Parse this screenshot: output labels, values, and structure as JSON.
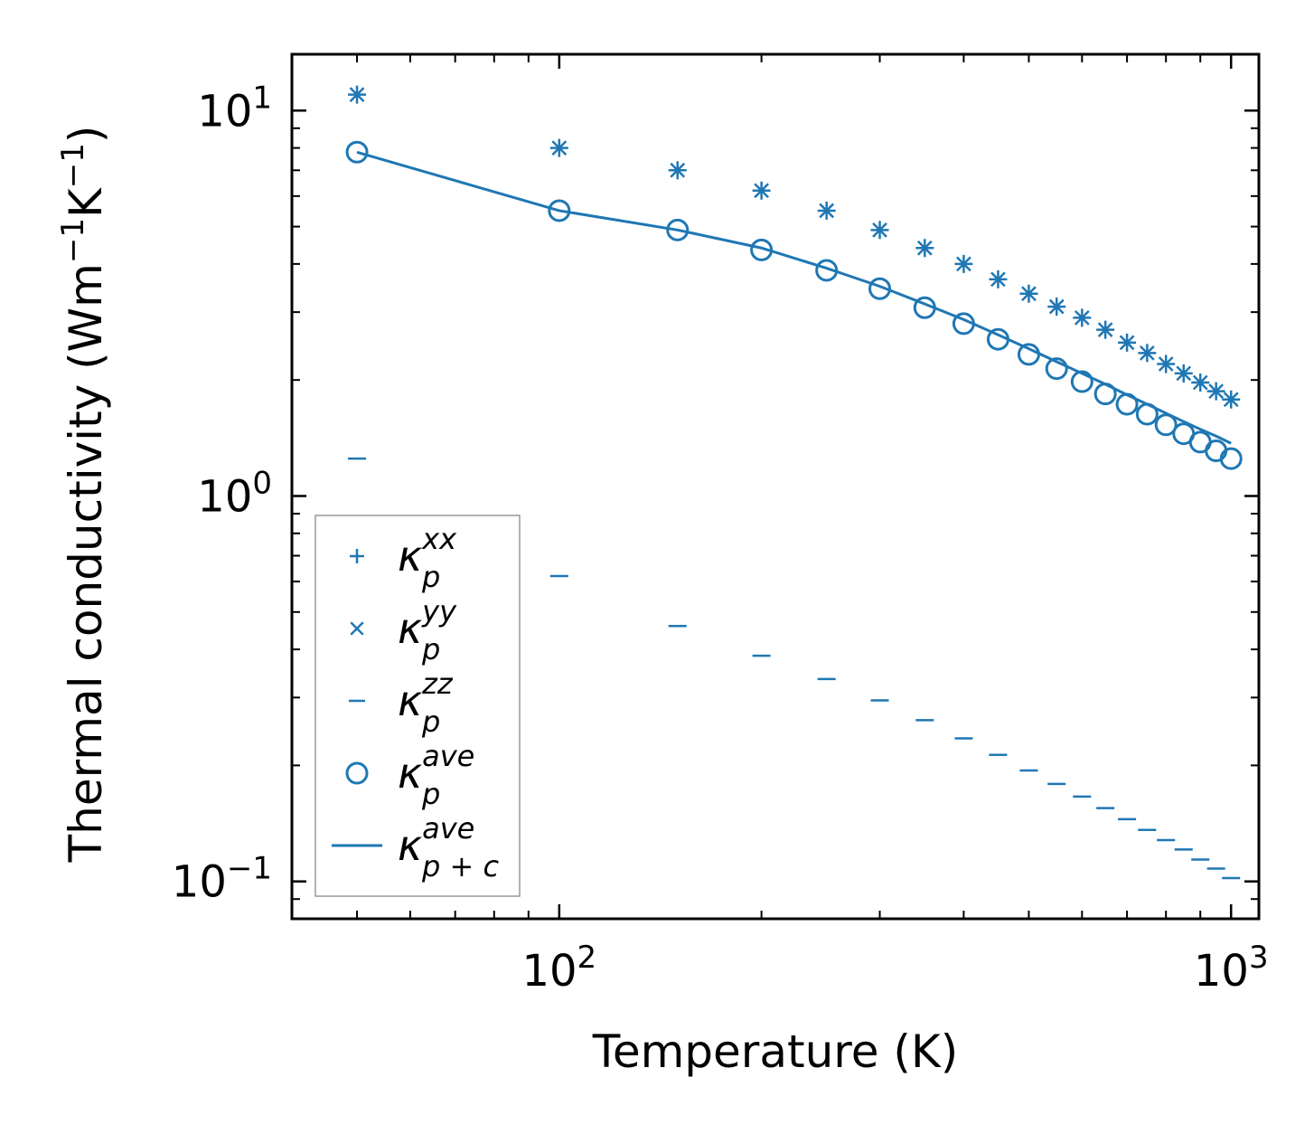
{
  "chart_data": {
    "type": "scatter",
    "title": "",
    "xlabel": "Temperature (K)",
    "ylabel": "Thermal conductivity (Wm$^{-1}$K$^{-1}$)",
    "ylabel_parts": {
      "base": "Thermal conductivity (Wm",
      "exp1": "−1",
      "mid": "K",
      "exp2": "−1",
      "end": ")"
    },
    "xscale": "log",
    "yscale": "log",
    "xlim": [
      40,
      1100
    ],
    "ylim": [
      0.08,
      14
    ],
    "x_ticks": [
      {
        "value": 100,
        "base": "10",
        "exp": "2"
      },
      {
        "value": 1000,
        "base": "10",
        "exp": "3"
      }
    ],
    "y_ticks": [
      {
        "value": 0.1,
        "base": "10",
        "exp": "−1"
      },
      {
        "value": 1,
        "base": "10",
        "exp": "0"
      },
      {
        "value": 10,
        "base": "10",
        "exp": "1"
      }
    ],
    "color": "#1f77b4",
    "legend_position": "lower-left",
    "x": [
      50,
      100,
      150,
      200,
      250,
      300,
      350,
      400,
      450,
      500,
      550,
      600,
      650,
      700,
      750,
      800,
      850,
      900,
      950,
      1000
    ],
    "series": [
      {
        "name": "κ_p^xx",
        "label_base": "κ",
        "label_sup": "xx",
        "label_sub": "p",
        "marker": "plus",
        "values": [
          11.0,
          8.0,
          7.0,
          6.2,
          5.5,
          4.9,
          4.4,
          4.0,
          3.65,
          3.35,
          3.1,
          2.9,
          2.7,
          2.5,
          2.35,
          2.2,
          2.08,
          1.97,
          1.87,
          1.78
        ]
      },
      {
        "name": "κ_p^yy",
        "label_base": "κ",
        "label_sup": "yy",
        "label_sub": "p",
        "marker": "x",
        "values": [
          11.0,
          8.0,
          7.0,
          6.2,
          5.5,
          4.9,
          4.4,
          4.0,
          3.65,
          3.35,
          3.1,
          2.9,
          2.7,
          2.5,
          2.35,
          2.2,
          2.08,
          1.97,
          1.87,
          1.78
        ]
      },
      {
        "name": "κ_p^zz",
        "label_base": "κ",
        "label_sup": "zz",
        "label_sub": "p",
        "marker": "hline",
        "values": [
          1.25,
          0.62,
          0.46,
          0.385,
          0.335,
          0.295,
          0.262,
          0.235,
          0.213,
          0.194,
          0.179,
          0.166,
          0.155,
          0.145,
          0.136,
          0.128,
          0.121,
          0.114,
          0.108,
          0.102
        ]
      },
      {
        "name": "κ_p^ave",
        "label_base": "κ",
        "label_sup": "ave",
        "label_sub": "p",
        "marker": "circle",
        "values": [
          7.8,
          5.5,
          4.9,
          4.35,
          3.85,
          3.45,
          3.08,
          2.8,
          2.55,
          2.33,
          2.14,
          1.98,
          1.84,
          1.73,
          1.63,
          1.53,
          1.45,
          1.38,
          1.31,
          1.25
        ]
      },
      {
        "name": "κ_p+c^ave",
        "label_base": "κ",
        "label_sup": "ave",
        "label_sub": "p + c",
        "marker": "line",
        "values": [
          7.8,
          5.5,
          4.9,
          4.4,
          3.9,
          3.5,
          3.15,
          2.87,
          2.62,
          2.41,
          2.23,
          2.08,
          1.95,
          1.83,
          1.73,
          1.64,
          1.56,
          1.49,
          1.43,
          1.37
        ]
      }
    ]
  }
}
